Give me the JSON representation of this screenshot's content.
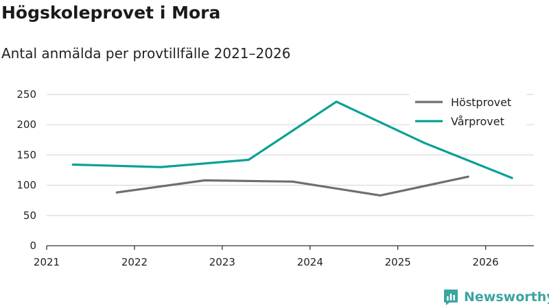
{
  "colors": {
    "host": "#6e6d75",
    "var": "#0aa095",
    "grid": "#d9d9d9",
    "axis": "#333333",
    "brand": "#3aa5a0"
  },
  "brand": {
    "name": "Newsworthy",
    "icon": "newsworthy-logo-icon"
  },
  "chart_data": {
    "type": "line",
    "title": "Högskoleprovet i Mora",
    "subtitle": "Antal anmälda per provtillfälle 2021–2026",
    "xlabel": "",
    "ylabel": "",
    "xlim": [
      2021,
      2026.55
    ],
    "ylim": [
      0,
      250
    ],
    "yticks": [
      0,
      50,
      100,
      150,
      200,
      250
    ],
    "xticks": [
      2021,
      2022,
      2023,
      2024,
      2025,
      2026
    ],
    "grid": true,
    "legend_position": "top-right",
    "series": [
      {
        "name": "Höstprovet",
        "color_key": "host",
        "x": [
          2021.8,
          2022.8,
          2023.8,
          2024.8,
          2025.8
        ],
        "values": [
          88,
          108,
          106,
          83,
          114
        ]
      },
      {
        "name": "Vårprovet",
        "color_key": "var",
        "x": [
          2021.3,
          2022.3,
          2023.3,
          2024.3,
          2025.3,
          2026.3
        ],
        "values": [
          134,
          130,
          142,
          238,
          170,
          112
        ]
      }
    ]
  }
}
